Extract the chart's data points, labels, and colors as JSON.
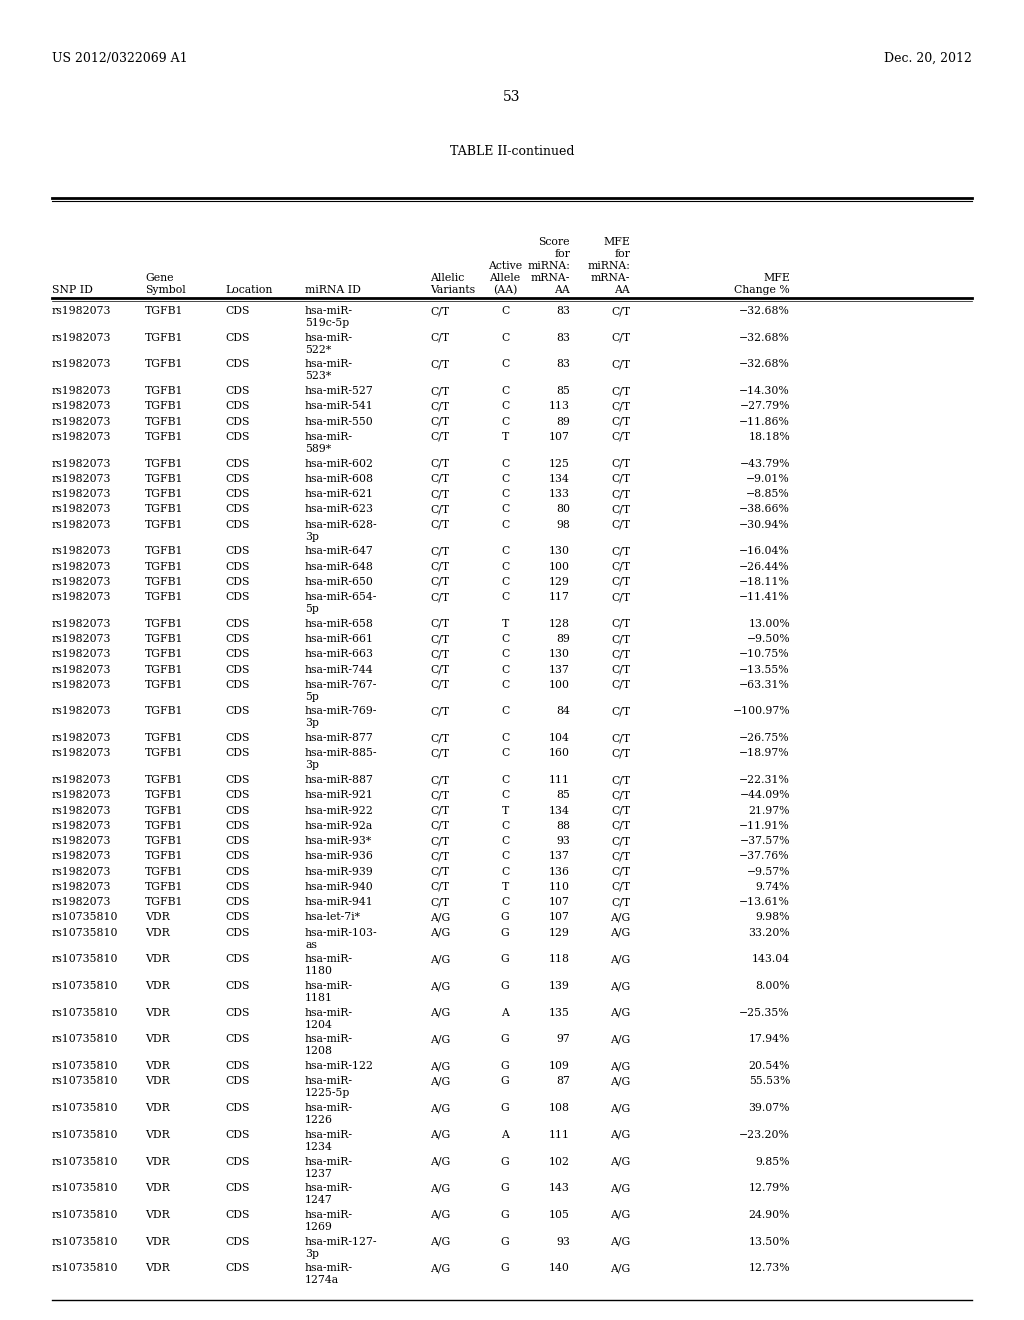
{
  "header_left": "US 2012/0322069 A1",
  "header_right": "Dec. 20, 2012",
  "page_number": "53",
  "table_title": "TABLE II-continued",
  "col_headers": [
    [
      "SNP ID",
      "",
      "",
      "",
      "",
      ""
    ],
    [
      "Gene",
      "Symbol",
      "",
      "",
      "",
      ""
    ],
    [
      "Location",
      "",
      "",
      "",
      "",
      ""
    ],
    [
      "miRNA ID",
      "",
      "",
      "",
      "",
      ""
    ],
    [
      "Allelic",
      "Variants",
      "",
      "",
      "",
      ""
    ],
    [
      "Active",
      "Allele",
      "(AA)",
      "",
      "",
      ""
    ],
    [
      "Score",
      "for",
      "miRNA:",
      "mRNA-",
      "AA",
      ""
    ],
    [
      "MFE",
      "for",
      "miRNA:",
      "mRNA-",
      "AA",
      ""
    ],
    [
      "MFE",
      "Change %",
      "",
      "",
      "",
      ""
    ]
  ],
  "rows": [
    [
      "rs1982073",
      "TGFB1",
      "CDS",
      "hsa-miR-\n519c-5p",
      "C/T",
      "C",
      "83",
      "C/T",
      "−32.68%"
    ],
    [
      "rs1982073",
      "TGFB1",
      "CDS",
      "hsa-miR-\n522*",
      "C/T",
      "C",
      "83",
      "C/T",
      "−32.68%"
    ],
    [
      "rs1982073",
      "TGFB1",
      "CDS",
      "hsa-miR-\n523*",
      "C/T",
      "C",
      "83",
      "C/T",
      "−32.68%"
    ],
    [
      "rs1982073",
      "TGFB1",
      "CDS",
      "hsa-miR-527",
      "C/T",
      "C",
      "85",
      "C/T",
      "−14.30%"
    ],
    [
      "rs1982073",
      "TGFB1",
      "CDS",
      "hsa-miR-541",
      "C/T",
      "C",
      "113",
      "C/T",
      "−27.79%"
    ],
    [
      "rs1982073",
      "TGFB1",
      "CDS",
      "hsa-miR-550",
      "C/T",
      "C",
      "89",
      "C/T",
      "−11.86%"
    ],
    [
      "rs1982073",
      "TGFB1",
      "CDS",
      "hsa-miR-\n589*",
      "C/T",
      "T",
      "107",
      "C/T",
      "18.18%"
    ],
    [
      "rs1982073",
      "TGFB1",
      "CDS",
      "hsa-miR-602",
      "C/T",
      "C",
      "125",
      "C/T",
      "−43.79%"
    ],
    [
      "rs1982073",
      "TGFB1",
      "CDS",
      "hsa-miR-608",
      "C/T",
      "C",
      "134",
      "C/T",
      "−9.01%"
    ],
    [
      "rs1982073",
      "TGFB1",
      "CDS",
      "hsa-miR-621",
      "C/T",
      "C",
      "133",
      "C/T",
      "−8.85%"
    ],
    [
      "rs1982073",
      "TGFB1",
      "CDS",
      "hsa-miR-623",
      "C/T",
      "C",
      "80",
      "C/T",
      "−38.66%"
    ],
    [
      "rs1982073",
      "TGFB1",
      "CDS",
      "hsa-miR-628-\n3p",
      "C/T",
      "C",
      "98",
      "C/T",
      "−30.94%"
    ],
    [
      "rs1982073",
      "TGFB1",
      "CDS",
      "hsa-miR-647",
      "C/T",
      "C",
      "130",
      "C/T",
      "−16.04%"
    ],
    [
      "rs1982073",
      "TGFB1",
      "CDS",
      "hsa-miR-648",
      "C/T",
      "C",
      "100",
      "C/T",
      "−26.44%"
    ],
    [
      "rs1982073",
      "TGFB1",
      "CDS",
      "hsa-miR-650",
      "C/T",
      "C",
      "129",
      "C/T",
      "−18.11%"
    ],
    [
      "rs1982073",
      "TGFB1",
      "CDS",
      "hsa-miR-654-\n5p",
      "C/T",
      "C",
      "117",
      "C/T",
      "−11.41%"
    ],
    [
      "rs1982073",
      "TGFB1",
      "CDS",
      "hsa-miR-658",
      "C/T",
      "T",
      "128",
      "C/T",
      "13.00%"
    ],
    [
      "rs1982073",
      "TGFB1",
      "CDS",
      "hsa-miR-661",
      "C/T",
      "C",
      "89",
      "C/T",
      "−9.50%"
    ],
    [
      "rs1982073",
      "TGFB1",
      "CDS",
      "hsa-miR-663",
      "C/T",
      "C",
      "130",
      "C/T",
      "−10.75%"
    ],
    [
      "rs1982073",
      "TGFB1",
      "CDS",
      "hsa-miR-744",
      "C/T",
      "C",
      "137",
      "C/T",
      "−13.55%"
    ],
    [
      "rs1982073",
      "TGFB1",
      "CDS",
      "hsa-miR-767-\n5p",
      "C/T",
      "C",
      "100",
      "C/T",
      "−63.31%"
    ],
    [
      "rs1982073",
      "TGFB1",
      "CDS",
      "hsa-miR-769-\n3p",
      "C/T",
      "C",
      "84",
      "C/T",
      "−100.97%"
    ],
    [
      "rs1982073",
      "TGFB1",
      "CDS",
      "hsa-miR-877",
      "C/T",
      "C",
      "104",
      "C/T",
      "−26.75%"
    ],
    [
      "rs1982073",
      "TGFB1",
      "CDS",
      "hsa-miR-885-\n3p",
      "C/T",
      "C",
      "160",
      "C/T",
      "−18.97%"
    ],
    [
      "rs1982073",
      "TGFB1",
      "CDS",
      "hsa-miR-887",
      "C/T",
      "C",
      "111",
      "C/T",
      "−22.31%"
    ],
    [
      "rs1982073",
      "TGFB1",
      "CDS",
      "hsa-miR-921",
      "C/T",
      "C",
      "85",
      "C/T",
      "−44.09%"
    ],
    [
      "rs1982073",
      "TGFB1",
      "CDS",
      "hsa-miR-922",
      "C/T",
      "T",
      "134",
      "C/T",
      "21.97%"
    ],
    [
      "rs1982073",
      "TGFB1",
      "CDS",
      "hsa-miR-92a",
      "C/T",
      "C",
      "88",
      "C/T",
      "−11.91%"
    ],
    [
      "rs1982073",
      "TGFB1",
      "CDS",
      "hsa-miR-93*",
      "C/T",
      "C",
      "93",
      "C/T",
      "−37.57%"
    ],
    [
      "rs1982073",
      "TGFB1",
      "CDS",
      "hsa-miR-936",
      "C/T",
      "C",
      "137",
      "C/T",
      "−37.76%"
    ],
    [
      "rs1982073",
      "TGFB1",
      "CDS",
      "hsa-miR-939",
      "C/T",
      "C",
      "136",
      "C/T",
      "−9.57%"
    ],
    [
      "rs1982073",
      "TGFB1",
      "CDS",
      "hsa-miR-940",
      "C/T",
      "T",
      "110",
      "C/T",
      "9.74%"
    ],
    [
      "rs1982073",
      "TGFB1",
      "CDS",
      "hsa-miR-941",
      "C/T",
      "C",
      "107",
      "C/T",
      "−13.61%"
    ],
    [
      "rs10735810",
      "VDR",
      "CDS",
      "hsa-let-7i*",
      "A/G",
      "G",
      "107",
      "A/G",
      "9.98%"
    ],
    [
      "rs10735810",
      "VDR",
      "CDS",
      "hsa-miR-103-\nas",
      "A/G",
      "G",
      "129",
      "A/G",
      "33.20%"
    ],
    [
      "rs10735810",
      "VDR",
      "CDS",
      "hsa-miR-\n1180",
      "A/G",
      "G",
      "118",
      "A/G",
      "143.04"
    ],
    [
      "rs10735810",
      "VDR",
      "CDS",
      "hsa-miR-\n1181",
      "A/G",
      "G",
      "139",
      "A/G",
      "8.00%"
    ],
    [
      "rs10735810",
      "VDR",
      "CDS",
      "hsa-miR-\n1204",
      "A/G",
      "A",
      "135",
      "A/G",
      "−25.35%"
    ],
    [
      "rs10735810",
      "VDR",
      "CDS",
      "hsa-miR-\n1208",
      "A/G",
      "G",
      "97",
      "A/G",
      "17.94%"
    ],
    [
      "rs10735810",
      "VDR",
      "CDS",
      "hsa-miR-122",
      "A/G",
      "G",
      "109",
      "A/G",
      "20.54%"
    ],
    [
      "rs10735810",
      "VDR",
      "CDS",
      "hsa-miR-\n1225-5p",
      "A/G",
      "G",
      "87",
      "A/G",
      "55.53%"
    ],
    [
      "rs10735810",
      "VDR",
      "CDS",
      "hsa-miR-\n1226",
      "A/G",
      "G",
      "108",
      "A/G",
      "39.07%"
    ],
    [
      "rs10735810",
      "VDR",
      "CDS",
      "hsa-miR-\n1234",
      "A/G",
      "A",
      "111",
      "A/G",
      "−23.20%"
    ],
    [
      "rs10735810",
      "VDR",
      "CDS",
      "hsa-miR-\n1237",
      "A/G",
      "G",
      "102",
      "A/G",
      "9.85%"
    ],
    [
      "rs10735810",
      "VDR",
      "CDS",
      "hsa-miR-\n1247",
      "A/G",
      "G",
      "143",
      "A/G",
      "12.79%"
    ],
    [
      "rs10735810",
      "VDR",
      "CDS",
      "hsa-miR-\n1269",
      "A/G",
      "G",
      "105",
      "A/G",
      "24.90%"
    ],
    [
      "rs10735810",
      "VDR",
      "CDS",
      "hsa-miR-127-\n3p",
      "A/G",
      "G",
      "93",
      "A/G",
      "13.50%"
    ],
    [
      "rs10735810",
      "VDR",
      "CDS",
      "hsa-miR-\n1274a",
      "A/G",
      "G",
      "140",
      "A/G",
      "12.73%"
    ]
  ],
  "bg_color": "#ffffff",
  "text_color": "#000000",
  "font_size": 7.8,
  "header_font_size": 7.8
}
